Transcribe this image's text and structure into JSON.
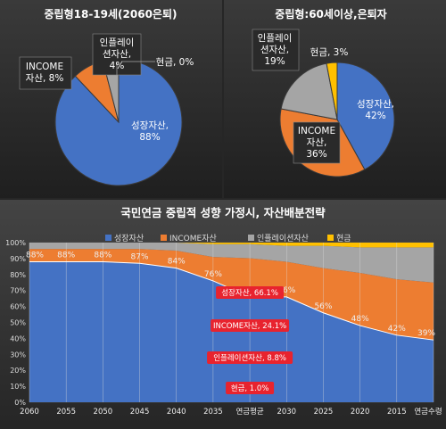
{
  "chart_data": [
    {
      "type": "pie",
      "title": "중립형18-19세(2060은퇴)",
      "slices": [
        {
          "name": "성장자산",
          "value": 88,
          "label": "88%",
          "color": "#4472C4"
        },
        {
          "name": "INCOME 자산",
          "value": 8,
          "label": "8%",
          "color": "#ED7D31"
        },
        {
          "name": "인플레이 션자산",
          "value": 4,
          "label": "4%",
          "color": "#A5A5A5"
        },
        {
          "name": "현금",
          "value": 0,
          "label": "0%",
          "color": "#FFC000"
        }
      ],
      "slice_labels": [
        {
          "lines": [
            "성장자산,",
            "88%"
          ]
        },
        {
          "lines": [
            "INCOME",
            "자산, 8%"
          ]
        },
        {
          "lines": [
            "인플레이",
            "션자산,",
            "4%"
          ]
        },
        {
          "lines": [
            "현금, 0%"
          ]
        }
      ]
    },
    {
      "type": "pie",
      "title": "중립형:60세이상,은퇴자",
      "slices": [
        {
          "name": "성장자산",
          "value": 42,
          "label": "42%",
          "color": "#4472C4"
        },
        {
          "name": "INCOME 자산",
          "value": 36,
          "label": "36%",
          "color": "#ED7D31"
        },
        {
          "name": "인플레이 션자산",
          "value": 19,
          "label": "19%",
          "color": "#A5A5A5"
        },
        {
          "name": "현금",
          "value": 3,
          "label": "3%",
          "color": "#FFC000"
        }
      ],
      "slice_labels": [
        {
          "lines": [
            "성장자산,",
            "42%"
          ]
        },
        {
          "lines": [
            "INCOME",
            "자산,",
            "36%"
          ]
        },
        {
          "lines": [
            "인플레이",
            "션자산,",
            "19%"
          ]
        },
        {
          "lines": [
            "현금, 3%"
          ]
        }
      ]
    },
    {
      "type": "area",
      "title": "국민연금 중립적 성향 가정시, 자산배분전략",
      "categories": [
        "2060",
        "2055",
        "2050",
        "2045",
        "2040",
        "2035",
        "연금평균",
        "2030",
        "2025",
        "2020",
        "2015",
        "연금수령"
      ],
      "ylim": [
        0,
        100
      ],
      "yticks": [
        "0%",
        "10%",
        "20%",
        "30%",
        "40%",
        "50%",
        "60%",
        "70%",
        "80%",
        "90%",
        "100%"
      ],
      "series": [
        {
          "name": "성장자산",
          "color": "#4472C4",
          "values": [
            88,
            88,
            88,
            87,
            84,
            76,
            66.1,
            66,
            56,
            48,
            42,
            39
          ]
        },
        {
          "name": "INCOME자산",
          "color": "#ED7D31",
          "values": [
            8,
            8,
            8,
            9,
            11,
            15,
            24.1,
            22,
            28,
            33,
            35,
            36
          ]
        },
        {
          "name": "인플레이션자산",
          "color": "#A5A5A5",
          "values": [
            4,
            4,
            4,
            4,
            5,
            8,
            8.8,
            10,
            14,
            16,
            20,
            22
          ]
        },
        {
          "name": "현금",
          "color": "#FFC000",
          "values": [
            0,
            0,
            0,
            0,
            0,
            1,
            1.0,
            2,
            2,
            3,
            3,
            3
          ]
        }
      ],
      "top_labels": [
        "88%",
        "88%",
        "88%",
        "87%",
        "84%",
        "76%",
        "",
        "66%",
        "56%",
        "48%",
        "42%",
        "39%"
      ],
      "callouts": [
        "성장자산, 66.1%",
        "INCOME자산, 24.1%",
        "인플레이션자산, 8.8%",
        "현금, 1.0%"
      ]
    }
  ]
}
